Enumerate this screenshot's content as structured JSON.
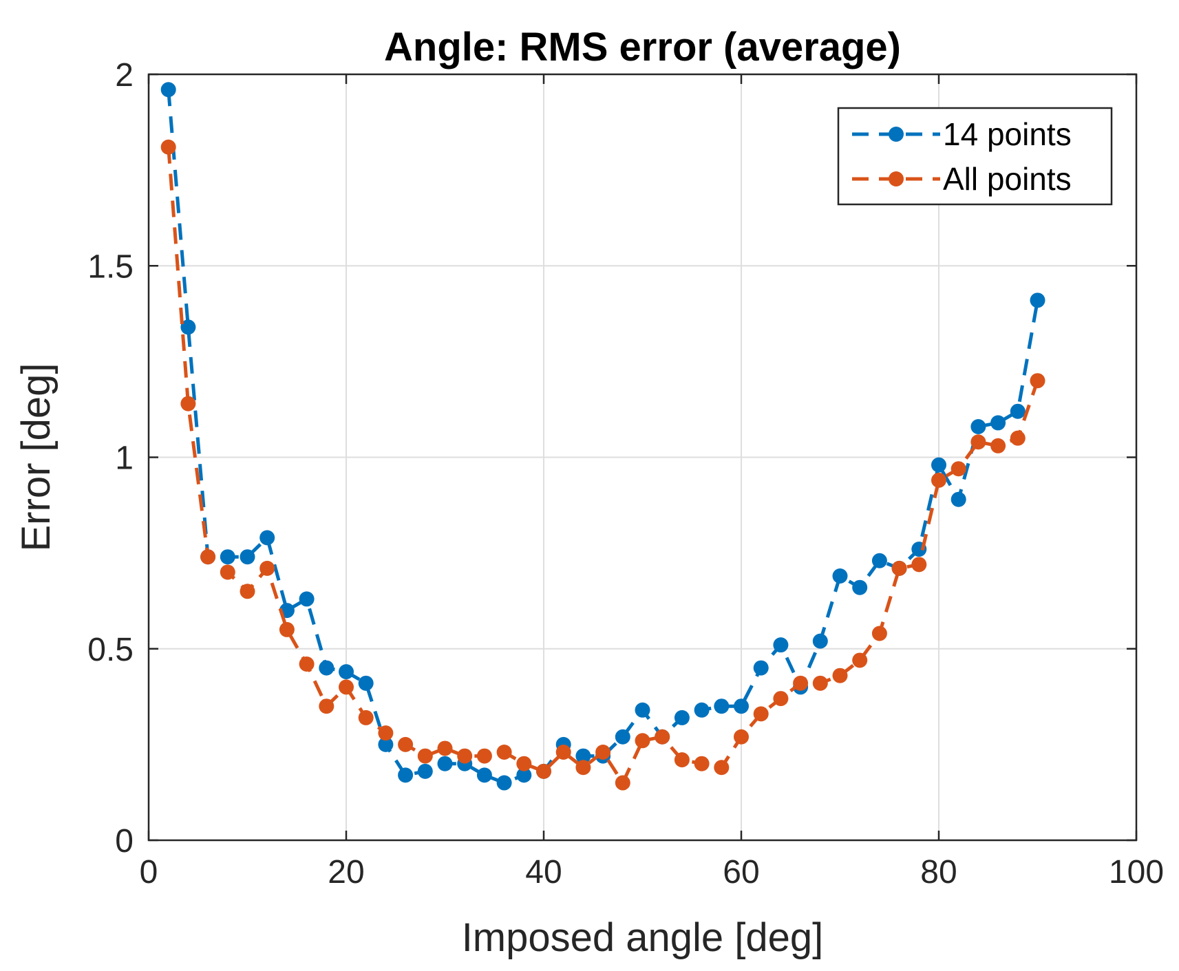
{
  "chart_data": {
    "type": "line",
    "title": "Angle:  RMS error (average)",
    "xlabel": "Imposed angle [deg]",
    "ylabel": "Error [deg]",
    "xlim": [
      0,
      100
    ],
    "ylim": [
      0,
      2
    ],
    "xticks": [
      0,
      20,
      40,
      60,
      80,
      100
    ],
    "yticks": [
      0,
      0.5,
      1,
      1.5,
      2
    ],
    "xtick_labels": [
      "0",
      "20",
      "40",
      "60",
      "80",
      "100"
    ],
    "ytick_labels": [
      "0",
      "0.5",
      "1",
      "1.5",
      "2"
    ],
    "grid": true,
    "legend_position": "top-right",
    "x": [
      2,
      4,
      6,
      8,
      10,
      12,
      14,
      16,
      18,
      20,
      22,
      24,
      26,
      28,
      30,
      32,
      34,
      36,
      38,
      40,
      42,
      44,
      46,
      48,
      50,
      52,
      54,
      56,
      58,
      60,
      62,
      64,
      66,
      68,
      70,
      72,
      74,
      76,
      78,
      80,
      82,
      84,
      86,
      88,
      90
    ],
    "series": [
      {
        "name": "14 points",
        "color": "#0072BD",
        "values": [
          1.96,
          1.34,
          0.74,
          0.74,
          0.74,
          0.79,
          0.6,
          0.63,
          0.45,
          0.44,
          0.41,
          0.25,
          0.17,
          0.18,
          0.2,
          0.2,
          0.17,
          0.15,
          0.17,
          0.18,
          0.25,
          0.22,
          0.22,
          0.27,
          0.34,
          0.27,
          0.32,
          0.34,
          0.35,
          0.35,
          0.45,
          0.51,
          0.4,
          0.52,
          0.69,
          0.66,
          0.73,
          0.71,
          0.76,
          0.98,
          0.89,
          1.08,
          1.09,
          1.12,
          1.41
        ]
      },
      {
        "name": "All points",
        "color": "#D95319",
        "values": [
          1.81,
          1.14,
          0.74,
          0.7,
          0.65,
          0.71,
          0.55,
          0.46,
          0.35,
          0.4,
          0.32,
          0.28,
          0.25,
          0.22,
          0.24,
          0.22,
          0.22,
          0.23,
          0.2,
          0.18,
          0.23,
          0.19,
          0.23,
          0.15,
          0.26,
          0.27,
          0.21,
          0.2,
          0.19,
          0.27,
          0.33,
          0.37,
          0.41,
          0.41,
          0.43,
          0.47,
          0.54,
          0.71,
          0.72,
          0.94,
          0.97,
          1.04,
          1.03,
          1.05,
          1.2
        ]
      }
    ]
  }
}
